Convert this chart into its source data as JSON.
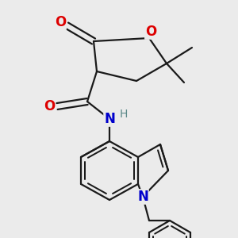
{
  "background_color": "#ebebeb",
  "bond_color": "#1a1a1a",
  "bond_width": 1.6,
  "figsize": [
    3.0,
    3.0
  ],
  "dpi": 100,
  "xlim": [
    0,
    300
  ],
  "ylim": [
    0,
    300
  ]
}
